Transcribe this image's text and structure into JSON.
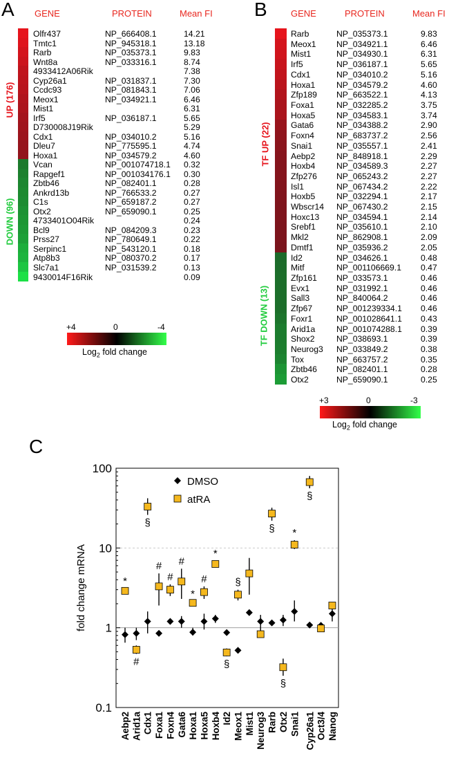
{
  "panels": {
    "a": "A",
    "b": "B",
    "c": "C"
  },
  "tableA": {
    "headers": {
      "gene": "GENE",
      "protein": "PROTEIN",
      "value": "Mean FI"
    },
    "up_label": "UP (176)",
    "down_label": "DOWN (96)",
    "colorbar": {
      "left": "+4",
      "mid": "0",
      "right": "-4",
      "label": "Log",
      "label_sub": "2",
      "label_tail": " fold change"
    },
    "rows": [
      {
        "gene": "Olfr437",
        "protein": "NP_666408.1",
        "value": "14.21",
        "dir": "up",
        "color": "#e6141c"
      },
      {
        "gene": "Tmtc1",
        "protein": "NP_945318.1",
        "value": "13.18",
        "dir": "up",
        "color": "#df141c"
      },
      {
        "gene": "Rarb",
        "protein": "NP_035373.1",
        "value": "9.83",
        "dir": "up",
        "color": "#d4141c"
      },
      {
        "gene": "Wnt8a",
        "protein": "NP_033316.1",
        "value": "8.74",
        "dir": "up",
        "color": "#cc141c"
      },
      {
        "gene": "4933412A06Rik",
        "protein": "",
        "value": "7.38",
        "dir": "up",
        "color": "#c0141c"
      },
      {
        "gene": "Cyp26a1",
        "protein": "NP_031837.1",
        "value": "7.30",
        "dir": "up",
        "color": "#bc141c"
      },
      {
        "gene": "Ccdc93",
        "protein": "NP_081843.1",
        "value": "7.06",
        "dir": "up",
        "color": "#b8141c"
      },
      {
        "gene": "Meox1",
        "protein": "NP_034921.1",
        "value": "6.46",
        "dir": "up",
        "color": "#b0141c"
      },
      {
        "gene": "Mist1",
        "protein": "",
        "value": "6.31",
        "dir": "up",
        "color": "#ac141c"
      },
      {
        "gene": "Irf5",
        "protein": "NP_036187.1",
        "value": "5.65",
        "dir": "up",
        "color": "#a4141c"
      },
      {
        "gene": "D730008J19Rik",
        "protein": "",
        "value": "5.29",
        "dir": "up",
        "color": "#a0141c"
      },
      {
        "gene": "Cdx1",
        "protein": "NP_034010.2",
        "value": "5.16",
        "dir": "up",
        "color": "#9c141c"
      },
      {
        "gene": "Dleu7",
        "protein": "NP_775595.1",
        "value": "4.74",
        "dir": "up",
        "color": "#96141c"
      },
      {
        "gene": "Hoxa1",
        "protein": "NP_034579.2",
        "value": "4.60",
        "dir": "up",
        "color": "#92141c"
      },
      {
        "gene": "Vcan",
        "protein": "NP_001074718.1",
        "value": "0.32",
        "dir": "down",
        "color": "#1c7a2c"
      },
      {
        "gene": "Rapgef1",
        "protein": "NP_001034176.1",
        "value": "0.30",
        "dir": "down",
        "color": "#1c802e"
      },
      {
        "gene": "Zbtb46",
        "protein": "NP_082401.1",
        "value": "0.28",
        "dir": "down",
        "color": "#1c8630"
      },
      {
        "gene": "Ankrd13b",
        "protein": "NP_766533.2",
        "value": "0.27",
        "dir": "down",
        "color": "#1c8a30"
      },
      {
        "gene": "C1s",
        "protein": "NP_659187.2",
        "value": "0.27",
        "dir": "down",
        "color": "#1c8c32"
      },
      {
        "gene": "Otx2",
        "protein": "NP_659090.1",
        "value": "0.25",
        "dir": "down",
        "color": "#1c9234"
      },
      {
        "gene": "4733401O04Rik",
        "protein": "",
        "value": "0.24",
        "dir": "down",
        "color": "#1c9634"
      },
      {
        "gene": "Bcl9",
        "protein": "NP_084209.3",
        "value": "0.23",
        "dir": "down",
        "color": "#1c9a36"
      },
      {
        "gene": "Prss27",
        "protein": "NP_780649.1",
        "value": "0.22",
        "dir": "down",
        "color": "#1ca038"
      },
      {
        "gene": "Serpinc1",
        "protein": "NP_543120.1",
        "value": "0.18",
        "dir": "down",
        "color": "#1cae3c"
      },
      {
        "gene": "Atp8b3",
        "protein": "NP_080370.2",
        "value": "0.17",
        "dir": "down",
        "color": "#1cb43e"
      },
      {
        "gene": "Slc7a1",
        "protein": "NP_031539.2",
        "value": "0.13",
        "dir": "down",
        "color": "#1cc642"
      },
      {
        "gene": "9430014F16Rik",
        "protein": "",
        "value": "0.09",
        "dir": "down",
        "color": "#1ce046"
      }
    ]
  },
  "tableB": {
    "headers": {
      "gene": "GENE",
      "protein": "PROTEIN",
      "value": "Mean FI"
    },
    "up_label": "TF UP (22)",
    "down_label": "TF DOWN (13)",
    "colorbar": {
      "left": "+3",
      "mid": "0",
      "right": "-3",
      "label": "Log",
      "label_sub": "2",
      "label_tail": " fold change"
    },
    "rows": [
      {
        "gene": "Rarb",
        "protein": "NP_035373.1",
        "value": "9.83",
        "dir": "up",
        "color": "#e6141c"
      },
      {
        "gene": "Meox1",
        "protein": "NP_034921.1",
        "value": "6.46",
        "dir": "up",
        "color": "#d4141c"
      },
      {
        "gene": "Mist1",
        "protein": "NP_034930.1",
        "value": "6.31",
        "dir": "up",
        "color": "#d0141c"
      },
      {
        "gene": "Irf5",
        "protein": "NP_036187.1",
        "value": "5.65",
        "dir": "up",
        "color": "#c8141c"
      },
      {
        "gene": "Cdx1",
        "protein": "NP_034010.2",
        "value": "5.16",
        "dir": "up",
        "color": "#c2141c"
      },
      {
        "gene": "Hoxa1",
        "protein": "NP_034579.2",
        "value": "4.60",
        "dir": "up",
        "color": "#ba141c"
      },
      {
        "gene": "Zfp189",
        "protein": "NP_663522.1",
        "value": "4.13",
        "dir": "up",
        "color": "#b2141c"
      },
      {
        "gene": "Foxa1",
        "protein": "NP_032285.2",
        "value": "3.75",
        "dir": "up",
        "color": "#aa141c"
      },
      {
        "gene": "Hoxa5",
        "protein": "NP_034583.1",
        "value": "3.74",
        "dir": "up",
        "color": "#aa141c"
      },
      {
        "gene": "Gata6",
        "protein": "NP_034388.2",
        "value": "2.90",
        "dir": "up",
        "color": "#98141c"
      },
      {
        "gene": "Foxn4",
        "protein": "NP_683737.2",
        "value": "2.56",
        "dir": "up",
        "color": "#8e141c"
      },
      {
        "gene": "Snai1",
        "protein": "NP_035557.1",
        "value": "2.41",
        "dir": "up",
        "color": "#8a141c"
      },
      {
        "gene": "Aebp2",
        "protein": "NP_848918.1",
        "value": "2.29",
        "dir": "up",
        "color": "#86141c"
      },
      {
        "gene": "Hoxb4",
        "protein": "NP_034589.3",
        "value": "2.27",
        "dir": "up",
        "color": "#84141c"
      },
      {
        "gene": "Zfp276",
        "protein": "NP_065243.2",
        "value": "2.27",
        "dir": "up",
        "color": "#84141c"
      },
      {
        "gene": "Isl1",
        "protein": "NP_067434.2",
        "value": "2.22",
        "dir": "up",
        "color": "#82141c"
      },
      {
        "gene": "Hoxb5",
        "protein": "NP_032294.1",
        "value": "2.17",
        "dir": "up",
        "color": "#80141c"
      },
      {
        "gene": "Wbscr14",
        "protein": "NP_067430.2",
        "value": "2.15",
        "dir": "up",
        "color": "#7e141c"
      },
      {
        "gene": "Hoxc13",
        "protein": "NP_034594.1",
        "value": "2.14",
        "dir": "up",
        "color": "#7e141c"
      },
      {
        "gene": "Srebf1",
        "protein": "NP_035610.1",
        "value": "2.10",
        "dir": "up",
        "color": "#7c141c"
      },
      {
        "gene": "Mkl2",
        "protein": "NP_862908.1",
        "value": "2.09",
        "dir": "up",
        "color": "#7c141c"
      },
      {
        "gene": "Dmtf1",
        "protein": "NP_035936.2",
        "value": "2.05",
        "dir": "up",
        "color": "#7a141c"
      },
      {
        "gene": "Id2",
        "protein": "NP_034626.1",
        "value": "0.48",
        "dir": "down",
        "color": "#1c6a2a"
      },
      {
        "gene": "Mitf",
        "protein": "NP_001106669.1",
        "value": "0.47",
        "dir": "down",
        "color": "#1c6c2a"
      },
      {
        "gene": "Zfp161",
        "protein": "NP_033573.1",
        "value": "0.46",
        "dir": "down",
        "color": "#1c6e2a"
      },
      {
        "gene": "Evx1",
        "protein": "NP_031992.1",
        "value": "0.46",
        "dir": "down",
        "color": "#1c6e2a"
      },
      {
        "gene": "Sall3",
        "protein": "NP_840064.2",
        "value": "0.46",
        "dir": "down",
        "color": "#1c6e2a"
      },
      {
        "gene": "Zfp67",
        "protein": "NP_001239334.1",
        "value": "0.46",
        "dir": "down",
        "color": "#1c6e2a"
      },
      {
        "gene": "Foxr1",
        "protein": "NP_001028641.1",
        "value": "0.43",
        "dir": "down",
        "color": "#1c742c"
      },
      {
        "gene": "Arid1a",
        "protein": "NP_001074288.1",
        "value": "0.39",
        "dir": "down",
        "color": "#1c7c2e"
      },
      {
        "gene": "Shox2",
        "protein": "NP_038693.1",
        "value": "0.39",
        "dir": "down",
        "color": "#1c7c2e"
      },
      {
        "gene": "Neurog3",
        "protein": "NP_033849.2",
        "value": "0.38",
        "dir": "down",
        "color": "#1c7e2e"
      },
      {
        "gene": "Tox",
        "protein": "NP_663757.2",
        "value": "0.35",
        "dir": "down",
        "color": "#1c8430"
      },
      {
        "gene": "Zbtb46",
        "protein": "NP_082401.1",
        "value": "0.28",
        "dir": "down",
        "color": "#1c9434"
      },
      {
        "gene": "Otx2",
        "protein": "NP_659090.1",
        "value": "0.25",
        "dir": "down",
        "color": "#1c9c36"
      }
    ]
  },
  "chart_data": {
    "type": "scatter",
    "ylabel": "fold change mRNA",
    "yscale": "log",
    "ylim": [
      0.1,
      100
    ],
    "yticks": [
      "0.1",
      "1",
      "10",
      "100"
    ],
    "categories": [
      "Aebp2",
      "Arid1a",
      "Cdx1",
      "Foxa1",
      "Foxn4",
      "Gata6",
      "Hoxa1",
      "Hoxa5",
      "Hoxb4",
      "Id2",
      "Meox1",
      "Mist1",
      "Neurog3",
      "Rarb",
      "Otx2",
      "Snai1",
      "Cyp26a1",
      "Oct3/4",
      "Nanog"
    ],
    "legend": {
      "dmso": "DMSO",
      "atra": "atRA"
    },
    "series": [
      {
        "name": "DMSO",
        "marker": "diamond",
        "color": "#000000",
        "values": [
          0.82,
          0.85,
          1.2,
          0.85,
          1.2,
          1.2,
          0.88,
          1.2,
          1.3,
          0.87,
          0.52,
          1.55,
          1.2,
          1.15,
          1.25,
          1.6,
          1.08,
          1.07,
          1.5
        ],
        "err_lo": [
          0.65,
          0.7,
          0.85,
          0.85,
          1.1,
          1.0,
          0.8,
          0.95,
          1.15,
          0.87,
          0.52,
          1.55,
          0.9,
          1.15,
          1.05,
          1.2,
          1.08,
          1.0,
          1.2
        ],
        "err_hi": [
          1.0,
          1.0,
          1.6,
          0.85,
          1.3,
          1.4,
          1.0,
          1.5,
          1.45,
          0.87,
          0.52,
          1.55,
          1.45,
          1.15,
          1.45,
          2.2,
          1.08,
          1.13,
          1.85
        ]
      },
      {
        "name": "atRA",
        "marker": "square",
        "color": "#f5b81e",
        "values": [
          2.9,
          0.53,
          33,
          3.3,
          3.0,
          3.8,
          2.05,
          2.8,
          6.3,
          0.49,
          2.6,
          4.8,
          0.83,
          27,
          0.32,
          11,
          67,
          0.98,
          1.9
        ],
        "err_lo": [
          2.7,
          0.47,
          26,
          1.9,
          2.5,
          2.3,
          1.95,
          2.3,
          5.7,
          0.44,
          2.2,
          2.6,
          0.83,
          22,
          0.25,
          9.7,
          56,
          0.94,
          1.75
        ],
        "err_hi": [
          3.1,
          0.6,
          42,
          4.8,
          3.5,
          5.5,
          2.15,
          3.3,
          6.9,
          0.55,
          3.0,
          7.5,
          0.83,
          32,
          0.41,
          12.5,
          80,
          1.02,
          2.05
        ]
      }
    ],
    "annotations": [
      {
        "category": "Aebp2",
        "symbol": "*",
        "position": "above"
      },
      {
        "category": "Arid1a",
        "symbol": "#",
        "position": "below"
      },
      {
        "category": "Cdx1",
        "symbol": "§",
        "position": "below"
      },
      {
        "category": "Foxa1",
        "symbol": "#",
        "position": "above"
      },
      {
        "category": "Foxn4",
        "symbol": "#",
        "position": "above"
      },
      {
        "category": "Gata6",
        "symbol": "#",
        "position": "above"
      },
      {
        "category": "Hoxa1",
        "symbol": "*",
        "position": "above"
      },
      {
        "category": "Hoxa5",
        "symbol": "#",
        "position": "above"
      },
      {
        "category": "Hoxb4",
        "symbol": "*",
        "position": "above"
      },
      {
        "category": "Id2",
        "symbol": "§",
        "position": "below"
      },
      {
        "category": "Meox1",
        "symbol": "§",
        "position": "above"
      },
      {
        "category": "Rarb",
        "symbol": "§",
        "position": "below"
      },
      {
        "category": "Otx2",
        "symbol": "§",
        "position": "below"
      },
      {
        "category": "Snai1",
        "symbol": "*",
        "position": "above"
      },
      {
        "category": "Cyp26a1",
        "symbol": "§",
        "position": "below"
      }
    ],
    "grid": "dashed line at 10, solid line at 1"
  }
}
